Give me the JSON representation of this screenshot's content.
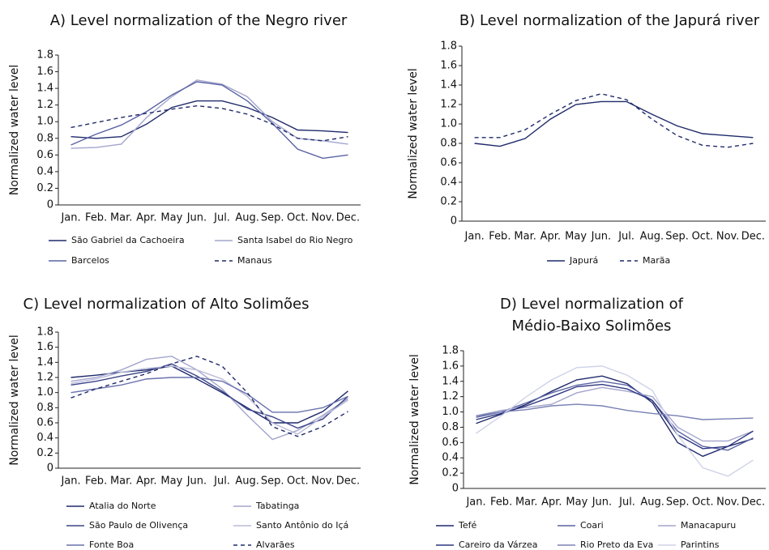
{
  "chart_data": [
    {
      "type": "line",
      "title": "A) Level normalization of the Negro river",
      "y_label": "Normalized water level",
      "categories": [
        "Jan.",
        "Feb.",
        "Mar.",
        "Apr.",
        "May",
        "Jun.",
        "Jul.",
        "Aug.",
        "Sep.",
        "Oct.",
        "Nov.",
        "Dec."
      ],
      "ylim": [
        0,
        1.8
      ],
      "yticks": [
        0,
        0.2,
        0.4,
        0.6,
        0.8,
        {
          "value": 1,
          "label": "1.0"
        },
        1.2,
        1.4,
        1.6,
        1.8
      ],
      "series": [
        {
          "name": "São Gabriel da Cachoeira",
          "color": "#1f2a6b",
          "dashed": false,
          "values": [
            0.82,
            0.8,
            0.82,
            0.97,
            1.17,
            1.25,
            1.25,
            1.17,
            1.05,
            0.9,
            0.89,
            0.87
          ]
        },
        {
          "name": "Santa Isabel do Rio Negro",
          "color": "#a3a5cc",
          "dashed": false,
          "values": [
            0.68,
            0.69,
            0.73,
            1.05,
            1.3,
            1.5,
            1.45,
            1.3,
            1.0,
            0.8,
            0.77,
            0.73
          ]
        },
        {
          "name": "Barcelos",
          "color": "#5a63a3",
          "dashed": false,
          "values": [
            0.72,
            0.85,
            0.96,
            1.12,
            1.32,
            1.48,
            1.44,
            1.25,
            0.98,
            0.67,
            0.56,
            0.6
          ]
        },
        {
          "name": "Manaus",
          "color": "#1f2a6b",
          "dashed": true,
          "values": [
            0.93,
            0.99,
            1.05,
            1.1,
            1.15,
            1.19,
            1.16,
            1.09,
            0.97,
            0.8,
            0.77,
            0.82
          ]
        }
      ]
    },
    {
      "type": "line",
      "title": "B) Level normalization of the Japurá river",
      "y_label": "Normalized water level",
      "categories": [
        "Jan.",
        "Feb.",
        "Mar.",
        "Apr.",
        "May",
        "Jun.",
        "Jul.",
        "Aug.",
        "Sep.",
        "Oct.",
        "Nov.",
        "Dec."
      ],
      "ylim": [
        0,
        1.8
      ],
      "yticks": [
        0,
        0.2,
        0.4,
        0.6,
        0.8,
        {
          "value": 1,
          "label": "1.0"
        },
        1.2,
        1.4,
        1.6,
        1.8
      ],
      "series": [
        {
          "name": "Japurá",
          "color": "#1f2a6b",
          "dashed": false,
          "values": [
            0.8,
            0.77,
            0.85,
            1.05,
            1.2,
            1.23,
            1.23,
            1.1,
            0.98,
            0.9,
            0.88,
            0.86
          ]
        },
        {
          "name": "Marãa",
          "color": "#1f2a6b",
          "dashed": true,
          "values": [
            0.86,
            0.86,
            0.94,
            1.1,
            1.24,
            1.31,
            1.25,
            1.05,
            0.88,
            0.78,
            0.76,
            0.8
          ]
        }
      ]
    },
    {
      "type": "line",
      "title": "C) Level normalization of Alto Solimões",
      "y_label": "Normalized water level",
      "categories": [
        "Jan.",
        "Feb.",
        "Mar.",
        "Apr.",
        "May",
        "Jun.",
        "Jul.",
        "Aug.",
        "Sep.",
        "Oct.",
        "Nov.",
        "Dec."
      ],
      "ylim": [
        0,
        1.8
      ],
      "yticks": [
        0,
        0.2,
        0.4,
        0.6,
        0.8,
        {
          "value": 1,
          "label": "1.0"
        },
        1.2,
        1.4,
        1.6,
        1.8
      ],
      "series": [
        {
          "name": "Atalia do Norte",
          "color": "#1f2a6b",
          "dashed": false,
          "values": [
            1.2,
            1.23,
            1.27,
            1.3,
            1.35,
            1.18,
            1.0,
            0.8,
            0.6,
            0.6,
            0.75,
            1.02
          ]
        },
        {
          "name": "Tabatinga",
          "color": "#a3a5cc",
          "dashed": false,
          "values": [
            1.15,
            1.2,
            1.3,
            1.44,
            1.48,
            1.3,
            1.05,
            0.7,
            0.38,
            0.5,
            0.7,
            0.92
          ]
        },
        {
          "name": "São Paulo de Olivença",
          "color": "#3a4488",
          "dashed": false,
          "values": [
            1.1,
            1.15,
            1.22,
            1.28,
            1.38,
            1.22,
            1.02,
            0.78,
            0.68,
            0.53,
            0.65,
            0.95
          ]
        },
        {
          "name": "Santo Antônio do Içá",
          "color": "#b9bbd9",
          "dashed": false,
          "values": [
            1.12,
            1.18,
            1.27,
            1.32,
            1.35,
            1.3,
            1.18,
            0.95,
            0.6,
            0.45,
            0.68,
            0.9
          ]
        },
        {
          "name": "Fonte Boa",
          "color": "#6a72ad",
          "dashed": false,
          "values": [
            1.0,
            1.05,
            1.1,
            1.18,
            1.2,
            1.2,
            1.15,
            0.98,
            0.74,
            0.74,
            0.8,
            0.95
          ]
        },
        {
          "name": "Alvarães",
          "color": "#1f2a6b",
          "dashed": true,
          "values": [
            0.93,
            1.05,
            1.15,
            1.25,
            1.38,
            1.48,
            1.35,
            1.0,
            0.55,
            0.42,
            0.55,
            0.75
          ]
        }
      ]
    },
    {
      "type": "line",
      "title": "D) Level normalization of Médio-Baixo Solimões",
      "y_label": "Normalized water level",
      "categories": [
        "Jan.",
        "Feb.",
        "Mar.",
        "Apr.",
        "May",
        "Jun.",
        "Jul.",
        "Aug.",
        "Sep.",
        "Oct.",
        "Nov.",
        "Dec."
      ],
      "ylim": [
        0,
        1.8
      ],
      "yticks": [
        0,
        0.2,
        0.4,
        0.6,
        0.8,
        {
          "value": 1,
          "label": "1.0"
        },
        1.2,
        1.4,
        1.6,
        1.8
      ],
      "series": [
        {
          "name": "Tefé",
          "color": "#1f2a6b",
          "dashed": false,
          "values": [
            0.85,
            0.97,
            1.1,
            1.27,
            1.42,
            1.47,
            1.37,
            1.12,
            0.6,
            0.42,
            0.55,
            0.65
          ]
        },
        {
          "name": "Coari",
          "color": "#5a63a3",
          "dashed": false,
          "values": [
            0.93,
            1.0,
            1.12,
            1.25,
            1.35,
            1.4,
            1.35,
            1.15,
            0.75,
            0.55,
            0.5,
            0.66
          ]
        },
        {
          "name": "Manacapuru",
          "color": "#a3a5cc",
          "dashed": false,
          "values": [
            0.95,
            1.02,
            1.06,
            1.1,
            1.25,
            1.32,
            1.27,
            1.2,
            0.8,
            0.62,
            0.62,
            0.75
          ]
        },
        {
          "name": "Careiro da Várzea",
          "color": "#2d3680",
          "dashed": false,
          "values": [
            0.9,
            0.98,
            1.08,
            1.2,
            1.33,
            1.36,
            1.3,
            1.15,
            0.7,
            0.52,
            0.55,
            0.75
          ]
        },
        {
          "name": "Rio Preto da Eva",
          "color": "#7a80b4",
          "dashed": false,
          "values": [
            0.95,
            1.0,
            1.03,
            1.08,
            1.1,
            1.08,
            1.02,
            0.98,
            0.95,
            0.9,
            0.91,
            0.92
          ]
        },
        {
          "name": "Parintins",
          "color": "#cfd2e8",
          "dashed": false,
          "values": [
            0.72,
            0.95,
            1.2,
            1.42,
            1.58,
            1.6,
            1.48,
            1.28,
            0.7,
            0.27,
            0.16,
            0.37
          ]
        }
      ]
    }
  ]
}
